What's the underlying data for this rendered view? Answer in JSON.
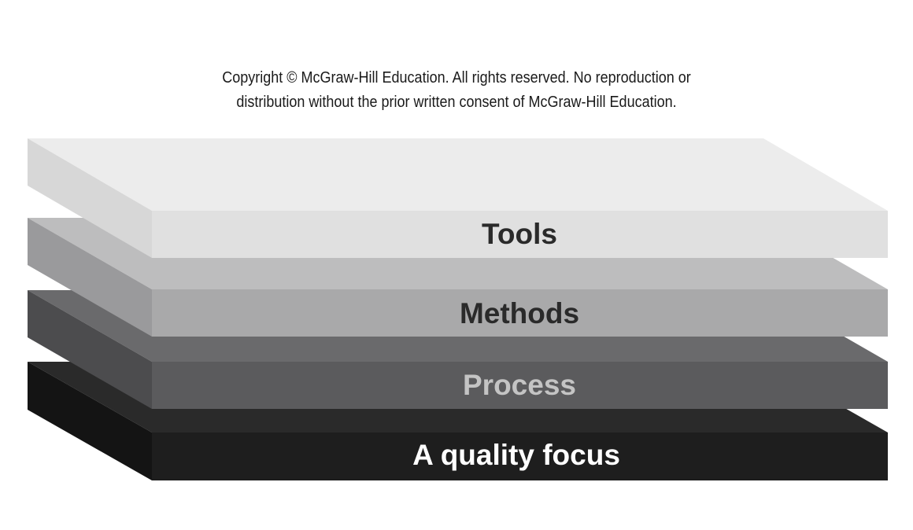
{
  "copyright": {
    "line1": "Copyright © McGraw-Hill Education. All rights reserved. No reproduction or",
    "line2": "distribution without the prior written consent of McGraw-Hill Education."
  },
  "layers": [
    {
      "label": "A quality focus",
      "top": "#2a2a2a",
      "front": "#1e1e1e",
      "side": "#141414",
      "text": "#ffffff"
    },
    {
      "label": "Process",
      "top": "#6a6a6c",
      "front": "#5b5b5d",
      "side": "#4c4c4e",
      "text": "#c4c4c4"
    },
    {
      "label": "Methods",
      "top": "#bdbdbe",
      "front": "#a9a9aa",
      "side": "#9a9a9c",
      "text": "#2a2a2a"
    },
    {
      "label": "Tools",
      "top": "#ececec",
      "front": "#e0e0e0",
      "side": "#d7d7d7",
      "text": "#2a2a2a"
    }
  ]
}
